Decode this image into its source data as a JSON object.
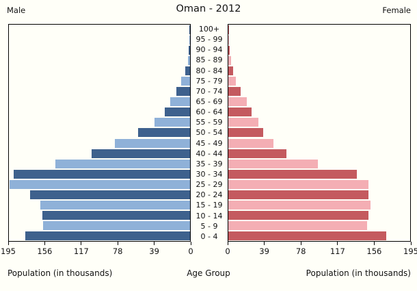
{
  "header": {
    "male_label": "Male",
    "title": "Oman - 2012",
    "female_label": "Female"
  },
  "footer": {
    "left_caption": "Population (in thousands)",
    "center_caption": "Age Group",
    "right_caption": "Population (in thousands)"
  },
  "colors": {
    "background": "#fffff8",
    "male_dark": "#3e618d",
    "male_light": "#8fb1d8",
    "female_dark": "#c45a5f",
    "female_light": "#f4aeb4",
    "border": "#000000"
  },
  "chart_data": {
    "type": "bar",
    "subtype": "population_pyramid",
    "title": "Oman - 2012",
    "unit": "thousands of people",
    "grid": false,
    "legend_position": "none",
    "age_groups": [
      "100+",
      "95 - 99",
      "90 - 94",
      "85 - 89",
      "80 - 84",
      "75 - 79",
      "70 - 74",
      "65 - 69",
      "60 - 64",
      "55 - 59",
      "50 - 54",
      "45 - 49",
      "40 - 44",
      "35 - 39",
      "30 - 34",
      "25 - 29",
      "20 - 24",
      "15 - 19",
      "10 - 14",
      "5 - 9",
      "0 - 4"
    ],
    "series": [
      {
        "name": "Male",
        "side": "left",
        "values": [
          0.4,
          0.7,
          1.3,
          2.3,
          5,
          9.5,
          15,
          21,
          27.5,
          38,
          56,
          81,
          106,
          145,
          190,
          194,
          172,
          161,
          159,
          158,
          177
        ]
      },
      {
        "name": "Female",
        "side": "right",
        "values": [
          0.7,
          0.6,
          1.2,
          2.9,
          5.1,
          8,
          13.5,
          20,
          25,
          32,
          37.5,
          48.5,
          62.5,
          96,
          138,
          150,
          150.5,
          152.5,
          150,
          148.5,
          169
        ]
      }
    ],
    "axis": {
      "max": 195,
      "male_ticks": [
        195,
        156,
        117,
        78,
        39,
        0
      ],
      "female_ticks": [
        0,
        39,
        78,
        117,
        156,
        195
      ],
      "xlabel": "Population (in thousands)",
      "center_label": "Age Group"
    }
  }
}
